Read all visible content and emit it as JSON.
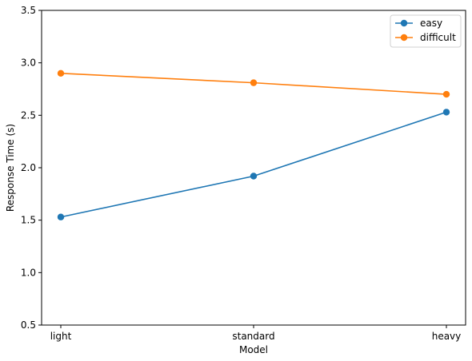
{
  "chart_data": {
    "type": "line",
    "title": "",
    "xlabel": "Model",
    "ylabel": "Response Time (s)",
    "categories": [
      "light",
      "standard",
      "heavy"
    ],
    "ylim": [
      0.5,
      3.5
    ],
    "yticks": [
      "0.5",
      "1.0",
      "1.5",
      "2.0",
      "2.5",
      "3.0",
      "3.5"
    ],
    "grid": false,
    "legend_position": "top-right",
    "series": [
      {
        "name": "easy",
        "color": "#1f77b4",
        "values": [
          1.53,
          1.92,
          2.53
        ]
      },
      {
        "name": "difficult",
        "color": "#ff7f0e",
        "values": [
          2.9,
          2.81,
          2.7
        ]
      }
    ]
  }
}
